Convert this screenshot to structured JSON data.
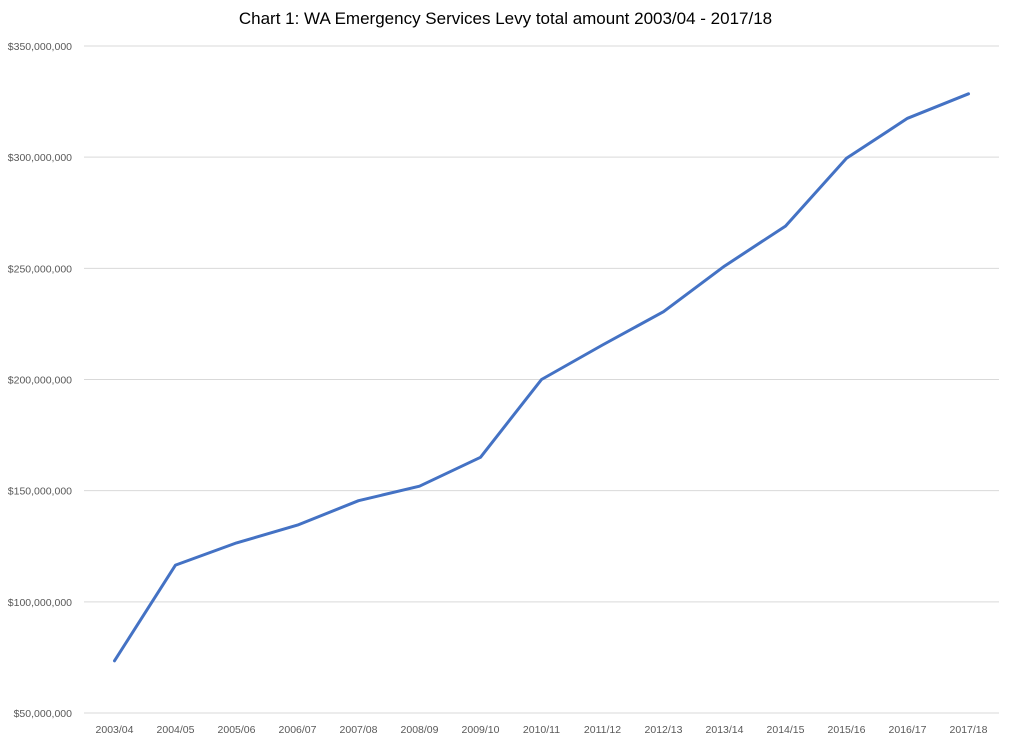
{
  "chart_data": {
    "type": "line",
    "title": "Chart 1: WA Emergency Services Levy total amount 2003/04 - 2017/18",
    "xlabel": "",
    "ylabel": "",
    "categories": [
      "2003/04",
      "2004/05",
      "2005/06",
      "2006/07",
      "2007/08",
      "2008/09",
      "2009/10",
      "2010/11",
      "2011/12",
      "2012/13",
      "2013/14",
      "2014/15",
      "2015/16",
      "2016/17",
      "2017/18"
    ],
    "series": [
      {
        "values": [
          73500000,
          116500000,
          126500000,
          134500000,
          145500000,
          152000000,
          165000000,
          200000000,
          215500000,
          230500000,
          251000000,
          269000000,
          299500000,
          317500000,
          328500000
        ],
        "color": "#4472C4"
      }
    ],
    "ylim": [
      50000000,
      350000000
    ],
    "yticks": [
      50000000,
      100000000,
      150000000,
      200000000,
      250000000,
      300000000,
      350000000
    ],
    "ytick_labels": [
      "$50,000,000",
      "$100,000,000",
      "$150,000,000",
      "$200,000,000",
      "$250,000,000",
      "$300,000,000",
      "$350,000,000"
    ],
    "grid": true,
    "legend": "none",
    "gridline_color": "#D9D9D9"
  }
}
